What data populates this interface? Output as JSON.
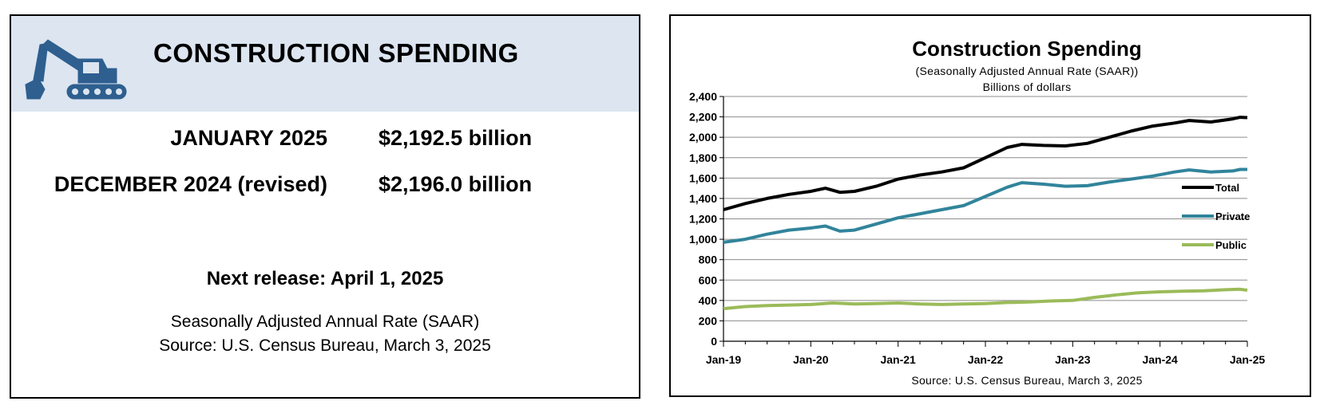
{
  "summary": {
    "title": "CONSTRUCTION SPENDING",
    "rows": [
      {
        "label": "JANUARY 2025",
        "value": "$2,192.5 billion"
      },
      {
        "label": "DECEMBER 2024 (revised)",
        "value": "$2,196.0 billion"
      }
    ],
    "next_release": "Next release: April 1, 2025",
    "note_saar": "Seasonally Adjusted Annual Rate (SAAR)",
    "note_source": "Source: U.S. Census Bureau, March 3, 2025",
    "icon": "excavator-icon",
    "header_color": "#dce5f0",
    "icon_color": "#2e5f8f"
  },
  "chart_data": {
    "type": "line",
    "title": "Construction  Spending",
    "subtitle": "(Seasonally Adjusted Annual Rate (SAAR))",
    "units_label": "Billions of dollars",
    "source": "Source: U.S. Census Bureau, March 3, 2025",
    "ylim": [
      0,
      2400
    ],
    "yticks": [
      0,
      200,
      400,
      600,
      800,
      1000,
      1200,
      1400,
      1600,
      1800,
      2000,
      2200,
      2400
    ],
    "ytick_labels": [
      "0",
      "200",
      "400",
      "600",
      "800",
      "1,000",
      "1,200",
      "1,400",
      "1,600",
      "1,800",
      "2,000",
      "2,200",
      "2,400"
    ],
    "xlim": [
      "2019-01",
      "2025-01"
    ],
    "xticks": [
      "2019-01",
      "2020-01",
      "2021-01",
      "2022-01",
      "2023-01",
      "2024-01",
      "2025-01"
    ],
    "xtick_labels": [
      "Jan-19",
      "Jan-20",
      "Jan-21",
      "Jan-22",
      "Jan-23",
      "Jan-24",
      "Jan-25"
    ],
    "grid": true,
    "legend_position": "right",
    "series": [
      {
        "name": "Total",
        "color": "#000000",
        "points": [
          [
            "2019-01",
            1290
          ],
          [
            "2019-04",
            1350
          ],
          [
            "2019-07",
            1400
          ],
          [
            "2019-10",
            1440
          ],
          [
            "2020-01",
            1470
          ],
          [
            "2020-03",
            1500
          ],
          [
            "2020-05",
            1460
          ],
          [
            "2020-07",
            1470
          ],
          [
            "2020-10",
            1520
          ],
          [
            "2021-01",
            1590
          ],
          [
            "2021-04",
            1630
          ],
          [
            "2021-07",
            1660
          ],
          [
            "2021-10",
            1700
          ],
          [
            "2022-01",
            1800
          ],
          [
            "2022-04",
            1900
          ],
          [
            "2022-06",
            1930
          ],
          [
            "2022-09",
            1920
          ],
          [
            "2022-12",
            1915
          ],
          [
            "2023-03",
            1940
          ],
          [
            "2023-06",
            2000
          ],
          [
            "2023-09",
            2060
          ],
          [
            "2023-12",
            2110
          ],
          [
            "2024-03",
            2140
          ],
          [
            "2024-05",
            2165
          ],
          [
            "2024-08",
            2150
          ],
          [
            "2024-11",
            2180
          ],
          [
            "2024-12",
            2196
          ],
          [
            "2025-01",
            2192.5
          ]
        ]
      },
      {
        "name": "Private",
        "color": "#31849b",
        "points": [
          [
            "2019-01",
            970
          ],
          [
            "2019-04",
            1000
          ],
          [
            "2019-07",
            1050
          ],
          [
            "2019-10",
            1090
          ],
          [
            "2020-01",
            1110
          ],
          [
            "2020-03",
            1130
          ],
          [
            "2020-05",
            1080
          ],
          [
            "2020-07",
            1090
          ],
          [
            "2020-10",
            1150
          ],
          [
            "2021-01",
            1210
          ],
          [
            "2021-04",
            1250
          ],
          [
            "2021-07",
            1290
          ],
          [
            "2021-10",
            1330
          ],
          [
            "2022-01",
            1420
          ],
          [
            "2022-04",
            1510
          ],
          [
            "2022-06",
            1555
          ],
          [
            "2022-09",
            1540
          ],
          [
            "2022-12",
            1520
          ],
          [
            "2023-03",
            1525
          ],
          [
            "2023-06",
            1560
          ],
          [
            "2023-09",
            1590
          ],
          [
            "2023-12",
            1620
          ],
          [
            "2024-03",
            1660
          ],
          [
            "2024-05",
            1680
          ],
          [
            "2024-08",
            1660
          ],
          [
            "2024-11",
            1670
          ],
          [
            "2024-12",
            1685
          ],
          [
            "2025-01",
            1685
          ]
        ]
      },
      {
        "name": "Public",
        "color": "#9bbb59",
        "points": [
          [
            "2019-01",
            320
          ],
          [
            "2019-04",
            340
          ],
          [
            "2019-07",
            350
          ],
          [
            "2019-10",
            355
          ],
          [
            "2020-01",
            360
          ],
          [
            "2020-04",
            375
          ],
          [
            "2020-07",
            365
          ],
          [
            "2020-10",
            370
          ],
          [
            "2021-01",
            375
          ],
          [
            "2021-04",
            365
          ],
          [
            "2021-07",
            360
          ],
          [
            "2021-10",
            365
          ],
          [
            "2022-01",
            370
          ],
          [
            "2022-04",
            380
          ],
          [
            "2022-07",
            385
          ],
          [
            "2022-10",
            395
          ],
          [
            "2023-01",
            400
          ],
          [
            "2023-04",
            430
          ],
          [
            "2023-07",
            455
          ],
          [
            "2023-10",
            475
          ],
          [
            "2024-01",
            485
          ],
          [
            "2024-04",
            490
          ],
          [
            "2024-07",
            495
          ],
          [
            "2024-10",
            505
          ],
          [
            "2024-12",
            510
          ],
          [
            "2025-01",
            500
          ]
        ]
      }
    ]
  }
}
